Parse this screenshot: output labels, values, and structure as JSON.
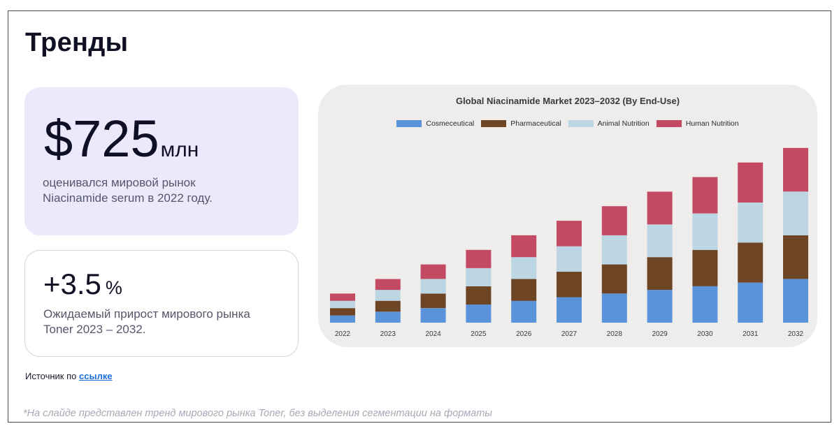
{
  "slide": {
    "title": "Тренды",
    "card1": {
      "value": "$725",
      "unit": "млн",
      "description": "оценивался мировой рынок\nNiacinamide serum  в 2022 году."
    },
    "card2": {
      "value": "+3.5",
      "unit": "%",
      "description": "Ожидаемый прирост мирового рынка\nToner 2023 – 2032."
    },
    "source_prefix": "Источник по",
    "source_link": "ссылке",
    "footnote": "*На слайде представлен тренд мирового рынка Toner, без выделения сегментации на форматы"
  },
  "chart_data": {
    "type": "bar",
    "stacked": true,
    "title": "Global Niacinamide Market 2023–2032 (By End-Use)",
    "legend_position": "top",
    "grid": false,
    "categories": [
      "2022",
      "2023",
      "2024",
      "2025",
      "2026",
      "2027",
      "2028",
      "2029",
      "2030",
      "2031",
      "2032"
    ],
    "series": [
      {
        "name": "Cosmeceutical",
        "color": "#5b93db",
        "values": [
          10,
          15,
          20,
          25,
          30,
          35,
          40,
          45,
          50,
          55,
          60
        ]
      },
      {
        "name": "Pharmaceutical",
        "color": "#6e4524",
        "values": [
          10,
          15,
          20,
          25,
          30,
          35,
          40,
          45,
          50,
          55,
          60
        ]
      },
      {
        "name": "Animal Nutrition",
        "color": "#bcd6e3",
        "values": [
          10,
          15,
          20,
          25,
          30,
          35,
          40,
          45,
          50,
          55,
          60
        ]
      },
      {
        "name": "Human Nutrition",
        "color": "#c44a64",
        "values": [
          10,
          15,
          20,
          25,
          30,
          35,
          40,
          45,
          50,
          55,
          60
        ]
      }
    ],
    "ylim": [
      0,
      260
    ]
  }
}
